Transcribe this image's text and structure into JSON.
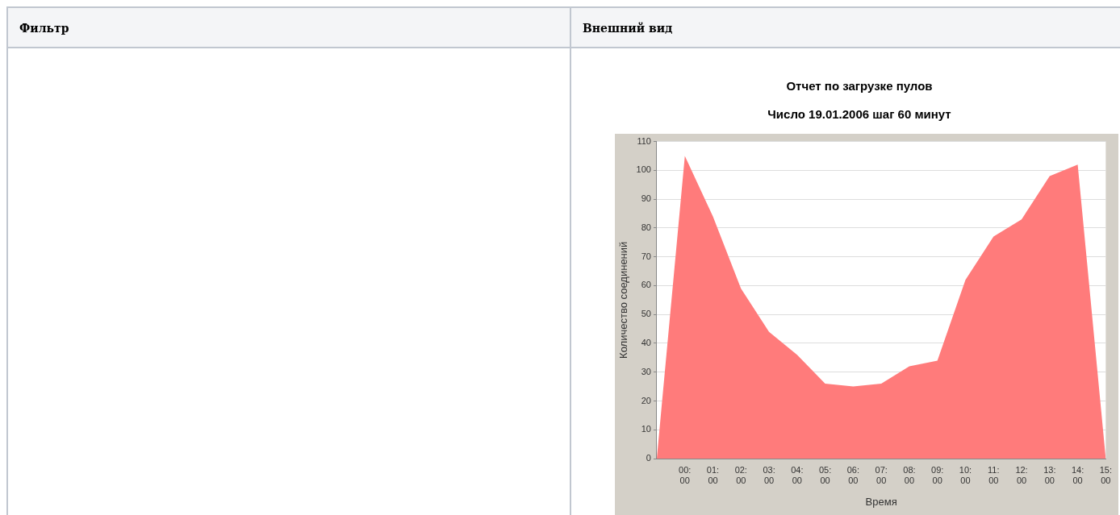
{
  "chart_data": {
    "type": "area",
    "title": "Отчет по загрузке пулов",
    "subtitle": "Число 19.01.2006 шаг 60 минут",
    "xlabel": "Время",
    "ylabel": "Количество соединений",
    "annotations": [
      "Фильтр",
      "Внешний вид"
    ],
    "categories": [
      null,
      "00:00",
      "01:00",
      "02:00",
      "03:00",
      "04:00",
      "05:00",
      "06:00",
      "07:00",
      "08:00",
      "09:00",
      "10:00",
      "11:00",
      "12:00",
      "13:00",
      "14:00",
      "15:00"
    ],
    "series": [
      {
        "color": "#ff7b7b",
        "values": [
          0,
          105,
          84,
          59,
          44,
          36,
          26,
          25,
          26,
          32,
          34,
          62,
          77,
          83,
          98,
          102,
          0
        ]
      }
    ],
    "ylim": [
      0,
      110
    ],
    "yticks": [
      0,
      10,
      20,
      30,
      40,
      50,
      60,
      70,
      80,
      90,
      100,
      110
    ],
    "grid": "y",
    "legend": false
  }
}
